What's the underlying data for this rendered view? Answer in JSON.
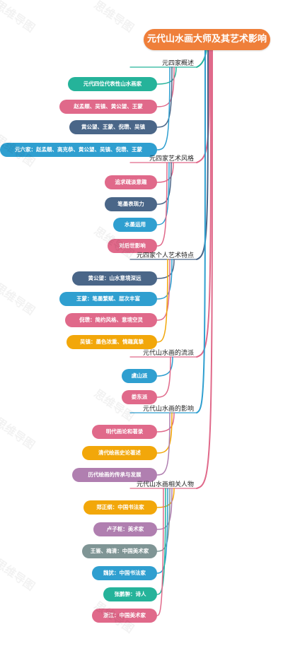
{
  "root": {
    "title": "元代山水画大师及其艺术影响"
  },
  "colors": {
    "teal": "#25b39a",
    "pink": "#e0698a",
    "slate": "#4a6688",
    "cyan": "#2f9fd0",
    "orange": "#f2a70a",
    "mauve": "#b07fb0",
    "gray": "#7f9595",
    "root": "#ef7f3a"
  },
  "watermark": "思维导图",
  "sections": [
    {
      "label": "元四家概述",
      "items": [
        "元代四位代表性山水画家",
        "赵孟頫、吴镇、黄公望、王蒙",
        "黄公望、王蒙、倪瓒、吴镇",
        "元六家：赵孟頫、高克恭、黄公望、吴镇、倪瓒、王蒙"
      ]
    },
    {
      "label": "元四家艺术风格",
      "items": [
        "追求疏淡意趣",
        "笔墨表现力",
        "水墨运用",
        "对后世影响"
      ]
    },
    {
      "label": "元四家个人艺术特点",
      "items": [
        "黄公望：山水意境深远",
        "王蒙：笔墨繁赋、层次丰富",
        "倪瓒：简约风格、意境空灵",
        "吴镇：墨色浓重、情趣真挚"
      ]
    },
    {
      "label": "元代山水画的流派",
      "items": [
        "虞山派",
        "娄东派"
      ]
    },
    {
      "label": "元代山水画的影响",
      "items": [
        "明代画论和著录",
        "清代绘画史论著述",
        "历代绘画的传承与发展"
      ]
    },
    {
      "label": "元代山水画相关人物",
      "items": [
        "郑正纲：中国书法家",
        "卢子枢：美术家",
        "王鉴、梅清：中国美术家",
        "魏犹：中国书法家",
        "张鹏翀：诗人",
        "浙江：中国美术家"
      ]
    }
  ]
}
